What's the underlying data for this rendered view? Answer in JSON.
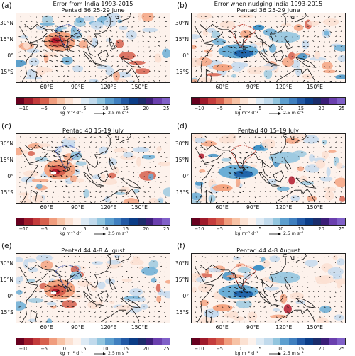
{
  "panels": [
    {
      "label": "(a)",
      "title1": "Error from India 1993-2015",
      "title2": "Pentad 36 25-29 June"
    },
    {
      "label": "(b)",
      "title1": "Error when nudging India 1993-2015",
      "title2": "Pentad 36 25-29 June"
    },
    {
      "label": "(c)",
      "title1": "",
      "title2": "Pentad 40 15-19 July"
    },
    {
      "label": "(d)",
      "title1": "",
      "title2": "Pentad 40 15-19 July"
    },
    {
      "label": "(e)",
      "title1": "",
      "title2": "Pentad 44 4-8 August"
    },
    {
      "label": "(f)",
      "title1": "",
      "title2": "Pentad 44 4-8 August"
    }
  ],
  "lat_ticks": [
    "30°N",
    "15°N",
    "0°",
    "15°S"
  ],
  "lon_ticks": [
    "60°E",
    "90°E",
    "120°E",
    "150°E"
  ],
  "colorbar": {
    "ticks": [
      "−10",
      "−5",
      "0",
      "5",
      "10",
      "15",
      "20",
      "25"
    ],
    "unit": "kg m⁻² d⁻¹",
    "ref_vector": "2.5 m s⁻¹",
    "colors": [
      "#67001f",
      "#9e1a2b",
      "#c43c3c",
      "#d6604d",
      "#f09d7e",
      "#f7c3a6",
      "#fbe1d2",
      "#fdf2ec",
      "#ddeaf4",
      "#c1daec",
      "#92c5de",
      "#5d9fcf",
      "#3f7fbf",
      "#2259a5",
      "#0b3c86",
      "#1b2c6b",
      "#3b1e78",
      "#6a3fae",
      "#8060c8"
    ]
  }
}
